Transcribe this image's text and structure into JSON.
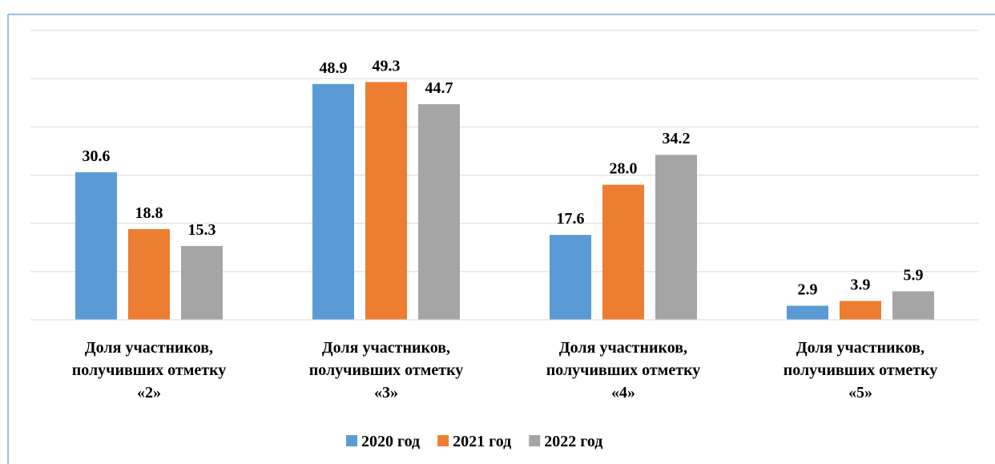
{
  "chart_data": {
    "type": "bar",
    "categories": [
      "Доля участников,\nполучивших отметку\n«2»",
      "Доля участников,\nполучивших отметку\n«3»",
      "Доля участников,\nполучивших отметку\n«4»",
      "Доля участников,\nполучивших отметку\n«5»"
    ],
    "series": [
      {
        "name": "2020 год",
        "color": "#5b9bd5",
        "values": [
          30.6,
          48.9,
          17.6,
          2.9
        ],
        "value_labels": [
          "30.6",
          "48.9",
          "17.6",
          "2.9"
        ]
      },
      {
        "name": "2021 год",
        "color": "#ed7d31",
        "values": [
          18.8,
          49.3,
          28.0,
          3.9
        ],
        "value_labels": [
          "18.8",
          "49.3",
          "28.0",
          "3.9"
        ]
      },
      {
        "name": "2022 год",
        "color": "#a5a5a5",
        "values": [
          15.3,
          44.7,
          34.2,
          5.9
        ],
        "value_labels": [
          "15.3",
          "44.7",
          "34.2",
          "5.9"
        ]
      }
    ],
    "ylim": [
      0,
      60
    ],
    "yticks": [
      0,
      10,
      20,
      30,
      40,
      50,
      60
    ],
    "grid": true,
    "legend": "bottom"
  }
}
